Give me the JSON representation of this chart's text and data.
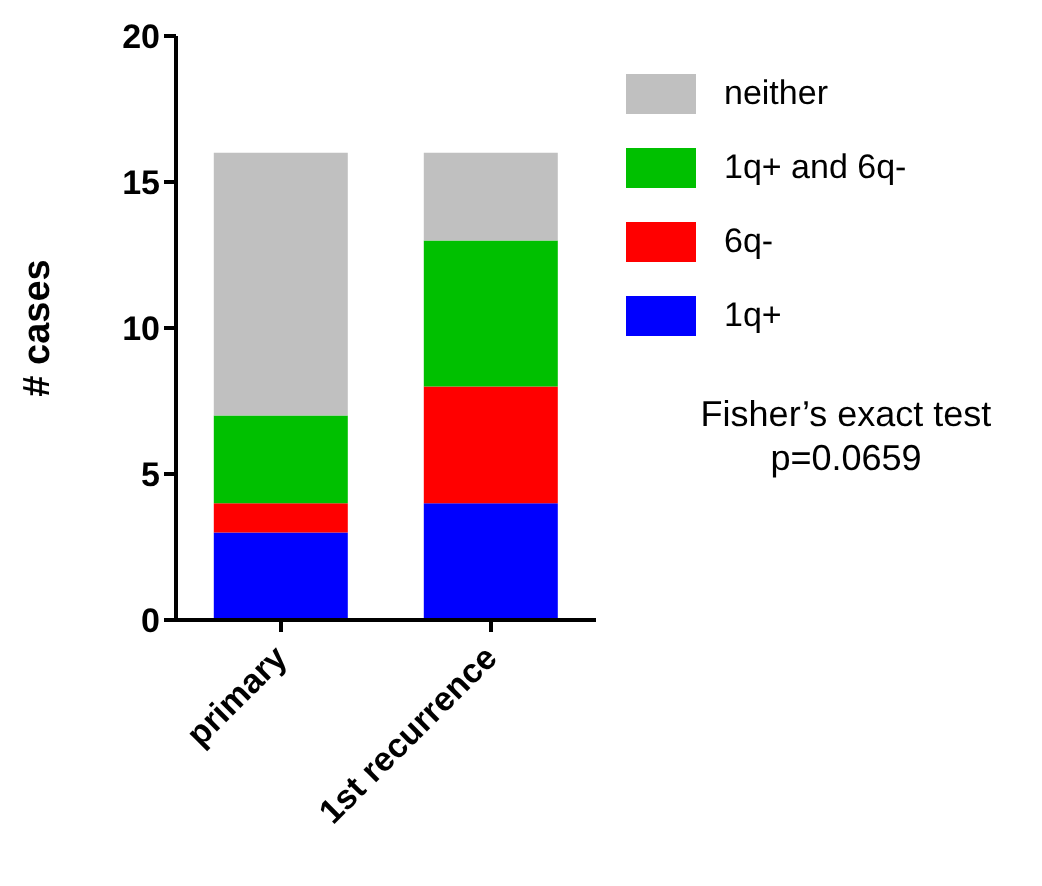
{
  "chart_data": {
    "type": "bar",
    "stacked": true,
    "ylabel": "# cases",
    "categories": [
      "primary",
      "1st recurrence"
    ],
    "series": [
      {
        "name": "1q+",
        "color": "#0000ff",
        "values": [
          3,
          4
        ]
      },
      {
        "name": "6q-",
        "color": "#ff0000",
        "values": [
          1,
          4
        ]
      },
      {
        "name": "1q+ and 6q-",
        "color": "#00c000",
        "values": [
          3,
          5
        ]
      },
      {
        "name": "neither",
        "color": "#c0c0c0",
        "values": [
          9,
          3
        ]
      }
    ],
    "ylim": [
      0,
      20
    ],
    "yticks": [
      0,
      5,
      10,
      15,
      20
    ],
    "grid": false,
    "legend": "top right",
    "annotations": [
      "Fisher’s exact test\np=0.0659"
    ]
  }
}
